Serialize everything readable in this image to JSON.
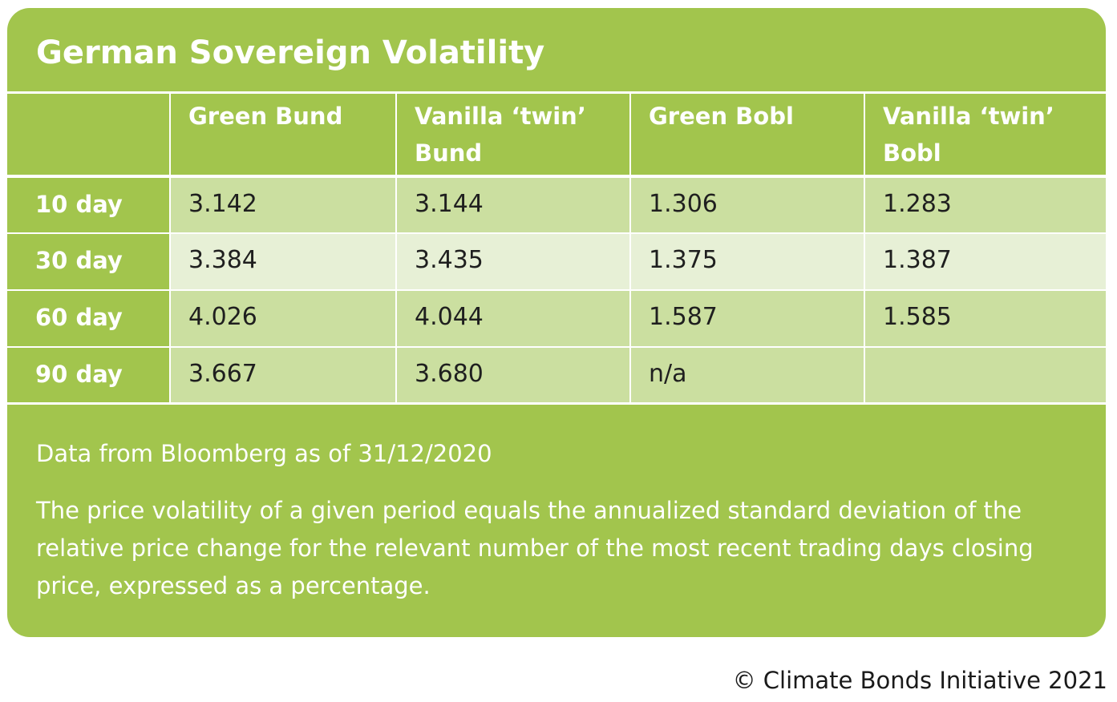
{
  "title": "German Sovereign Volatility",
  "table": {
    "headers": [
      "",
      "Green Bund",
      "Vanilla ‘twin’ Bund",
      "Green Bobl",
      "Vanilla ‘twin’ Bobl"
    ],
    "rows": [
      {
        "label": "10 day",
        "values": [
          "3.142",
          "3.144",
          "1.306",
          "1.283"
        ]
      },
      {
        "label": "30 day",
        "values": [
          "3.384",
          "3.435",
          "1.375",
          "1.387"
        ]
      },
      {
        "label": "60 day",
        "values": [
          "4.026",
          "4.044",
          "1.587",
          "1.585"
        ]
      },
      {
        "label": "90 day",
        "values": [
          "3.667",
          "3.680",
          "n/a",
          ""
        ]
      }
    ]
  },
  "notes": {
    "source": "Data from Bloomberg as of 31/12/2020",
    "definition": "The price volatility of a given period equals the annualized standard deviation of the relative price change for the relevant number of the most recent trading days closing price, expressed as a percentage."
  },
  "copyright": "© Climate Bonds Initiative 2021",
  "colors": {
    "card_green": "#a2c54d",
    "row_light_green": "#cbdfa0",
    "row_pale_green": "#e7f0d6",
    "text_white": "#ffffff",
    "text_dark": "#1f1f1f"
  }
}
